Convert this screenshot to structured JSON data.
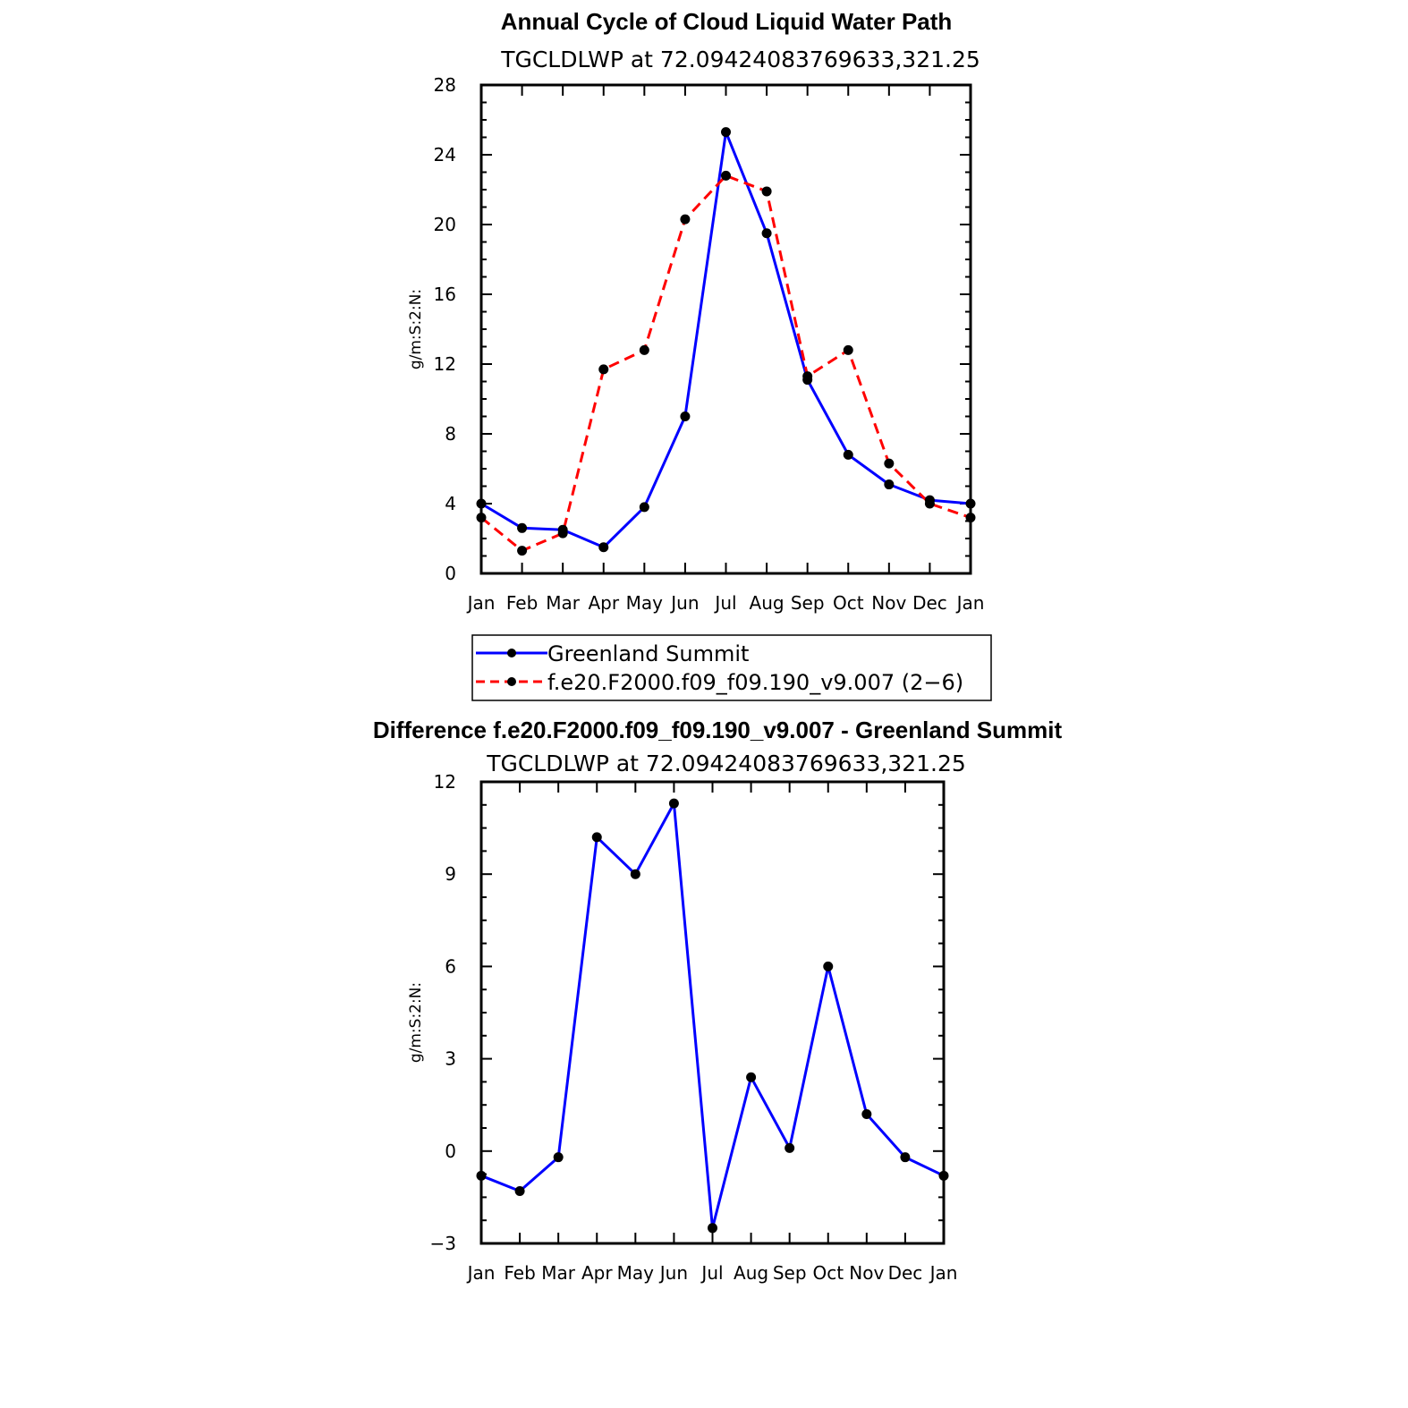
{
  "colors": {
    "series_observed": "#0000ff",
    "series_model": "#ff0000",
    "marker": "#000000",
    "axis": "#000000"
  },
  "chart_data": [
    {
      "type": "line",
      "title": "Annual Cycle of Cloud Liquid Water Path",
      "subtitle": "TGCLDLWP  at  72.09424083769633,321.25",
      "ylabel": "g/m:S:2:N:",
      "xlabel": "",
      "categories": [
        "Jan",
        "Feb",
        "Mar",
        "Apr",
        "May",
        "Jun",
        "Jul",
        "Aug",
        "Sep",
        "Oct",
        "Nov",
        "Dec",
        "Jan"
      ],
      "ylim": [
        0,
        28
      ],
      "yticks": [
        0,
        4,
        8,
        12,
        16,
        20,
        24,
        28
      ],
      "legend_position": "bottom",
      "series": [
        {
          "name": "Greenland Summit",
          "style": "solid",
          "values": [
            4.0,
            2.6,
            2.5,
            1.5,
            3.8,
            9.0,
            25.3,
            19.5,
            11.1,
            6.8,
            5.1,
            4.2,
            4.0
          ]
        },
        {
          "name": "f.e20.F2000.f09_f09.190_v9.007 (2−6)",
          "style": "dashed",
          "values": [
            3.2,
            1.3,
            2.3,
            11.7,
            12.8,
            20.3,
            22.8,
            21.9,
            11.3,
            12.8,
            6.3,
            4.0,
            3.2
          ]
        }
      ]
    },
    {
      "type": "line",
      "title": "Difference f.e20.F2000.f09_f09.190_v9.007 - Greenland Summit",
      "subtitle": "TGCLDLWP  at  72.09424083769633,321.25",
      "ylabel": "g/m:S:2:N:",
      "xlabel": "",
      "categories": [
        "Jan",
        "Feb",
        "Mar",
        "Apr",
        "May",
        "Jun",
        "Jul",
        "Aug",
        "Sep",
        "Oct",
        "Nov",
        "Dec",
        "Jan"
      ],
      "ylim": [
        -3,
        12
      ],
      "yticks": [
        -3,
        0,
        3,
        6,
        9,
        12
      ],
      "ytick_labels": [
        "−3",
        "0",
        "3",
        "6",
        "9",
        "12"
      ],
      "series": [
        {
          "name": "Difference",
          "style": "solid",
          "values": [
            -0.8,
            -1.3,
            -0.2,
            10.2,
            9.0,
            11.3,
            -2.5,
            2.4,
            0.1,
            6.0,
            1.2,
            -0.2,
            -0.8
          ]
        }
      ]
    }
  ]
}
